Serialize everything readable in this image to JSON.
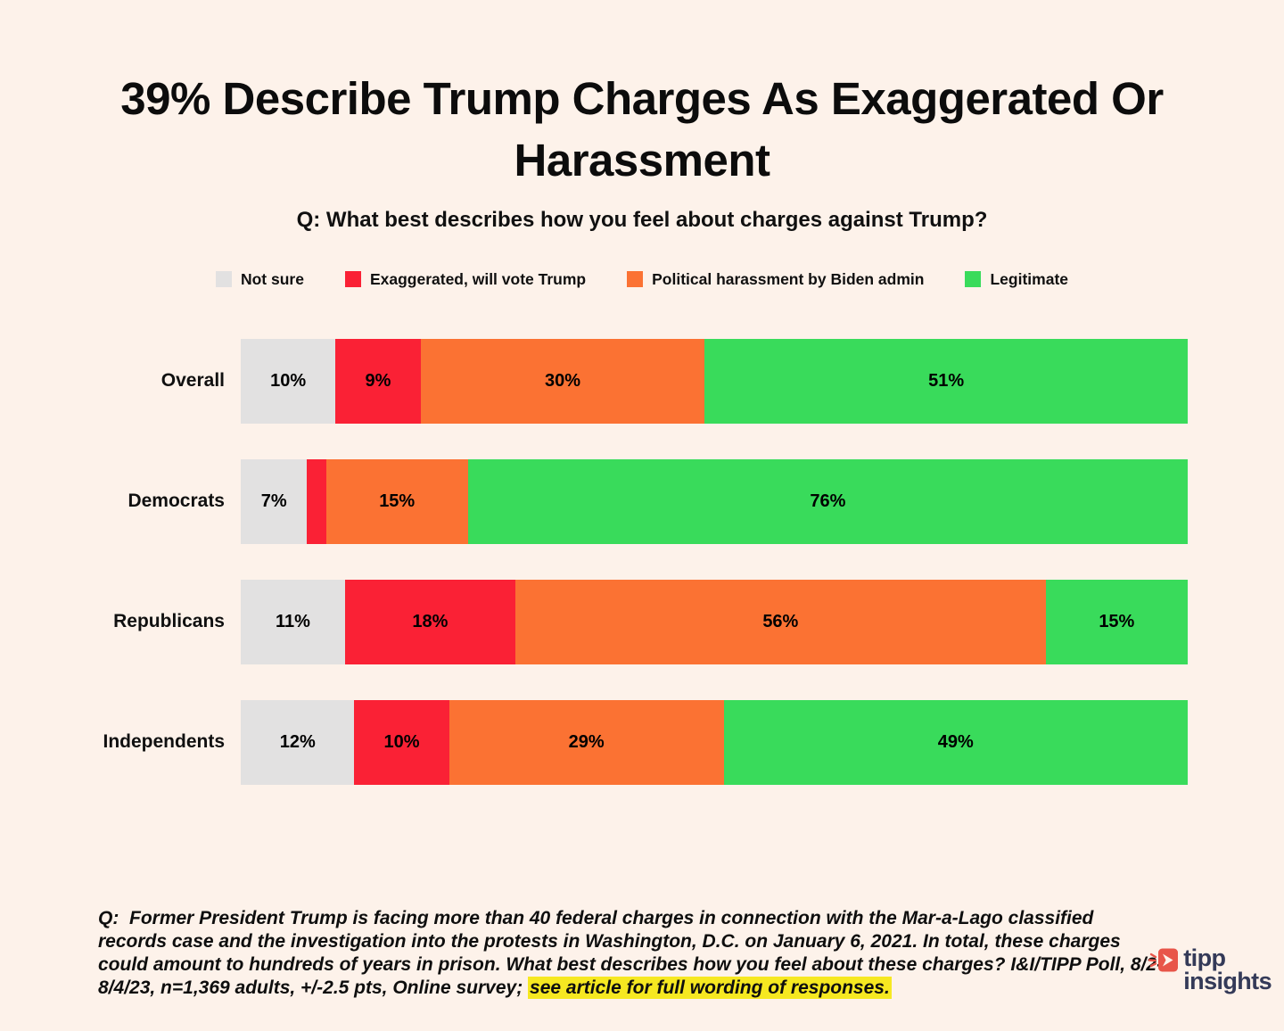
{
  "title": "39% Describe Trump Charges As Exaggerated Or Harassment",
  "subtitle": "Q: What best describes how you feel about charges against Trump?",
  "colors": {
    "background": "#fdf2ea",
    "not_sure_gray": "#e2e1e1",
    "exaggerated_red": "#fa2135",
    "harassment_orange": "#fb7233",
    "legitimate_green": "#39db5b",
    "highlight_yellow": "#f6e821",
    "logo_navy": "#343a58",
    "logo_red": "#e85549"
  },
  "legend": [
    {
      "label": "Not sure",
      "color": "#e2e1e1"
    },
    {
      "label": "Exaggerated, will vote Trump",
      "color": "#fa2135"
    },
    {
      "label": "Political harassment by Biden admin",
      "color": "#fb7233"
    },
    {
      "label": "Legitimate",
      "color": "#39db5b"
    }
  ],
  "chart_data": {
    "type": "bar",
    "stacked": true,
    "orientation": "horizontal",
    "units": "percent",
    "categories": [
      "Overall",
      "Democrats",
      "Republicans",
      "Independents"
    ],
    "series": [
      {
        "name": "Not sure",
        "color": "#e2e1e1",
        "values": [
          10,
          7,
          11,
          12
        ]
      },
      {
        "name": "Exaggerated, will vote Trump",
        "color": "#fa2135",
        "values": [
          9,
          2,
          18,
          10
        ]
      },
      {
        "name": "Political harassment by Biden admin",
        "color": "#fb7233",
        "values": [
          30,
          15,
          56,
          29
        ]
      },
      {
        "name": "Legitimate",
        "color": "#39db5b",
        "values": [
          51,
          76,
          15,
          49
        ]
      }
    ],
    "title": "39% Describe Trump Charges As Exaggerated Or Harassment",
    "xlabel": "",
    "ylabel": "",
    "xlim": [
      0,
      100
    ],
    "grid": false,
    "legend_position": "top",
    "data_label_format": "{value}%",
    "data_label_min_value": 3
  },
  "footnote": {
    "prefix": "Q:  Former President Trump is facing more than 40 federal charges in connection with the Mar-a-Lago classified records case and the investigation into the protests in Washington, D.C. on January 6, 2021. In total, these charges could amount to hundreds of years in prison. What best describes how you feel about these charges? I&I/TIPP Poll, 8/2-8/4/23, n=1,369 adults, +/-2.5 pts, Online survey; ",
    "highlight": "see article for full wording of responses."
  },
  "logo": {
    "line1": "tipp",
    "line2": "insights"
  }
}
